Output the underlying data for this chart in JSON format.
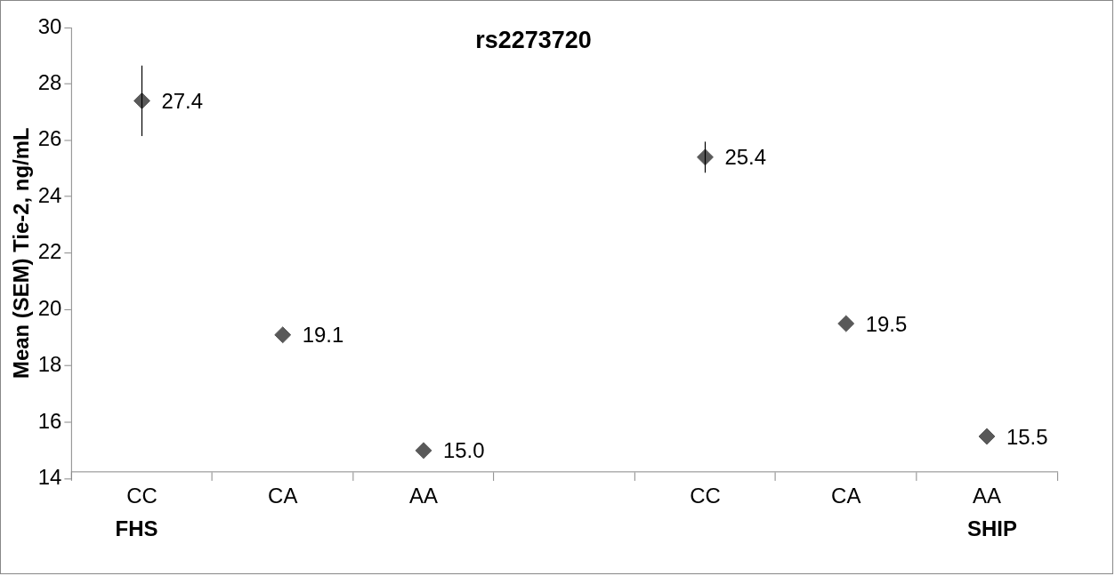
{
  "chart_data": {
    "type": "scatter",
    "title": "rs2273720",
    "ylabel": "Mean (SEM) Tie-2, ng/mL",
    "categories": [
      "CC",
      "CA",
      "AA",
      null,
      "CC",
      "CA",
      "AA"
    ],
    "values": [
      27.4,
      19.1,
      15.0,
      null,
      25.4,
      19.5,
      15.5
    ],
    "errors": [
      1.25,
      null,
      null,
      null,
      0.55,
      null,
      null
    ],
    "value_labels": [
      "27.4",
      "19.1",
      "15.0",
      null,
      "25.4",
      "19.5",
      "15.5"
    ],
    "color": "#595959",
    "marker": "diamond",
    "ylim": [
      14,
      30
    ],
    "yticks": [
      14,
      16,
      18,
      20,
      22,
      24,
      26,
      28,
      30
    ],
    "grid": false,
    "legend": false,
    "annotations": [
      "FHS",
      "SHIP"
    ]
  }
}
